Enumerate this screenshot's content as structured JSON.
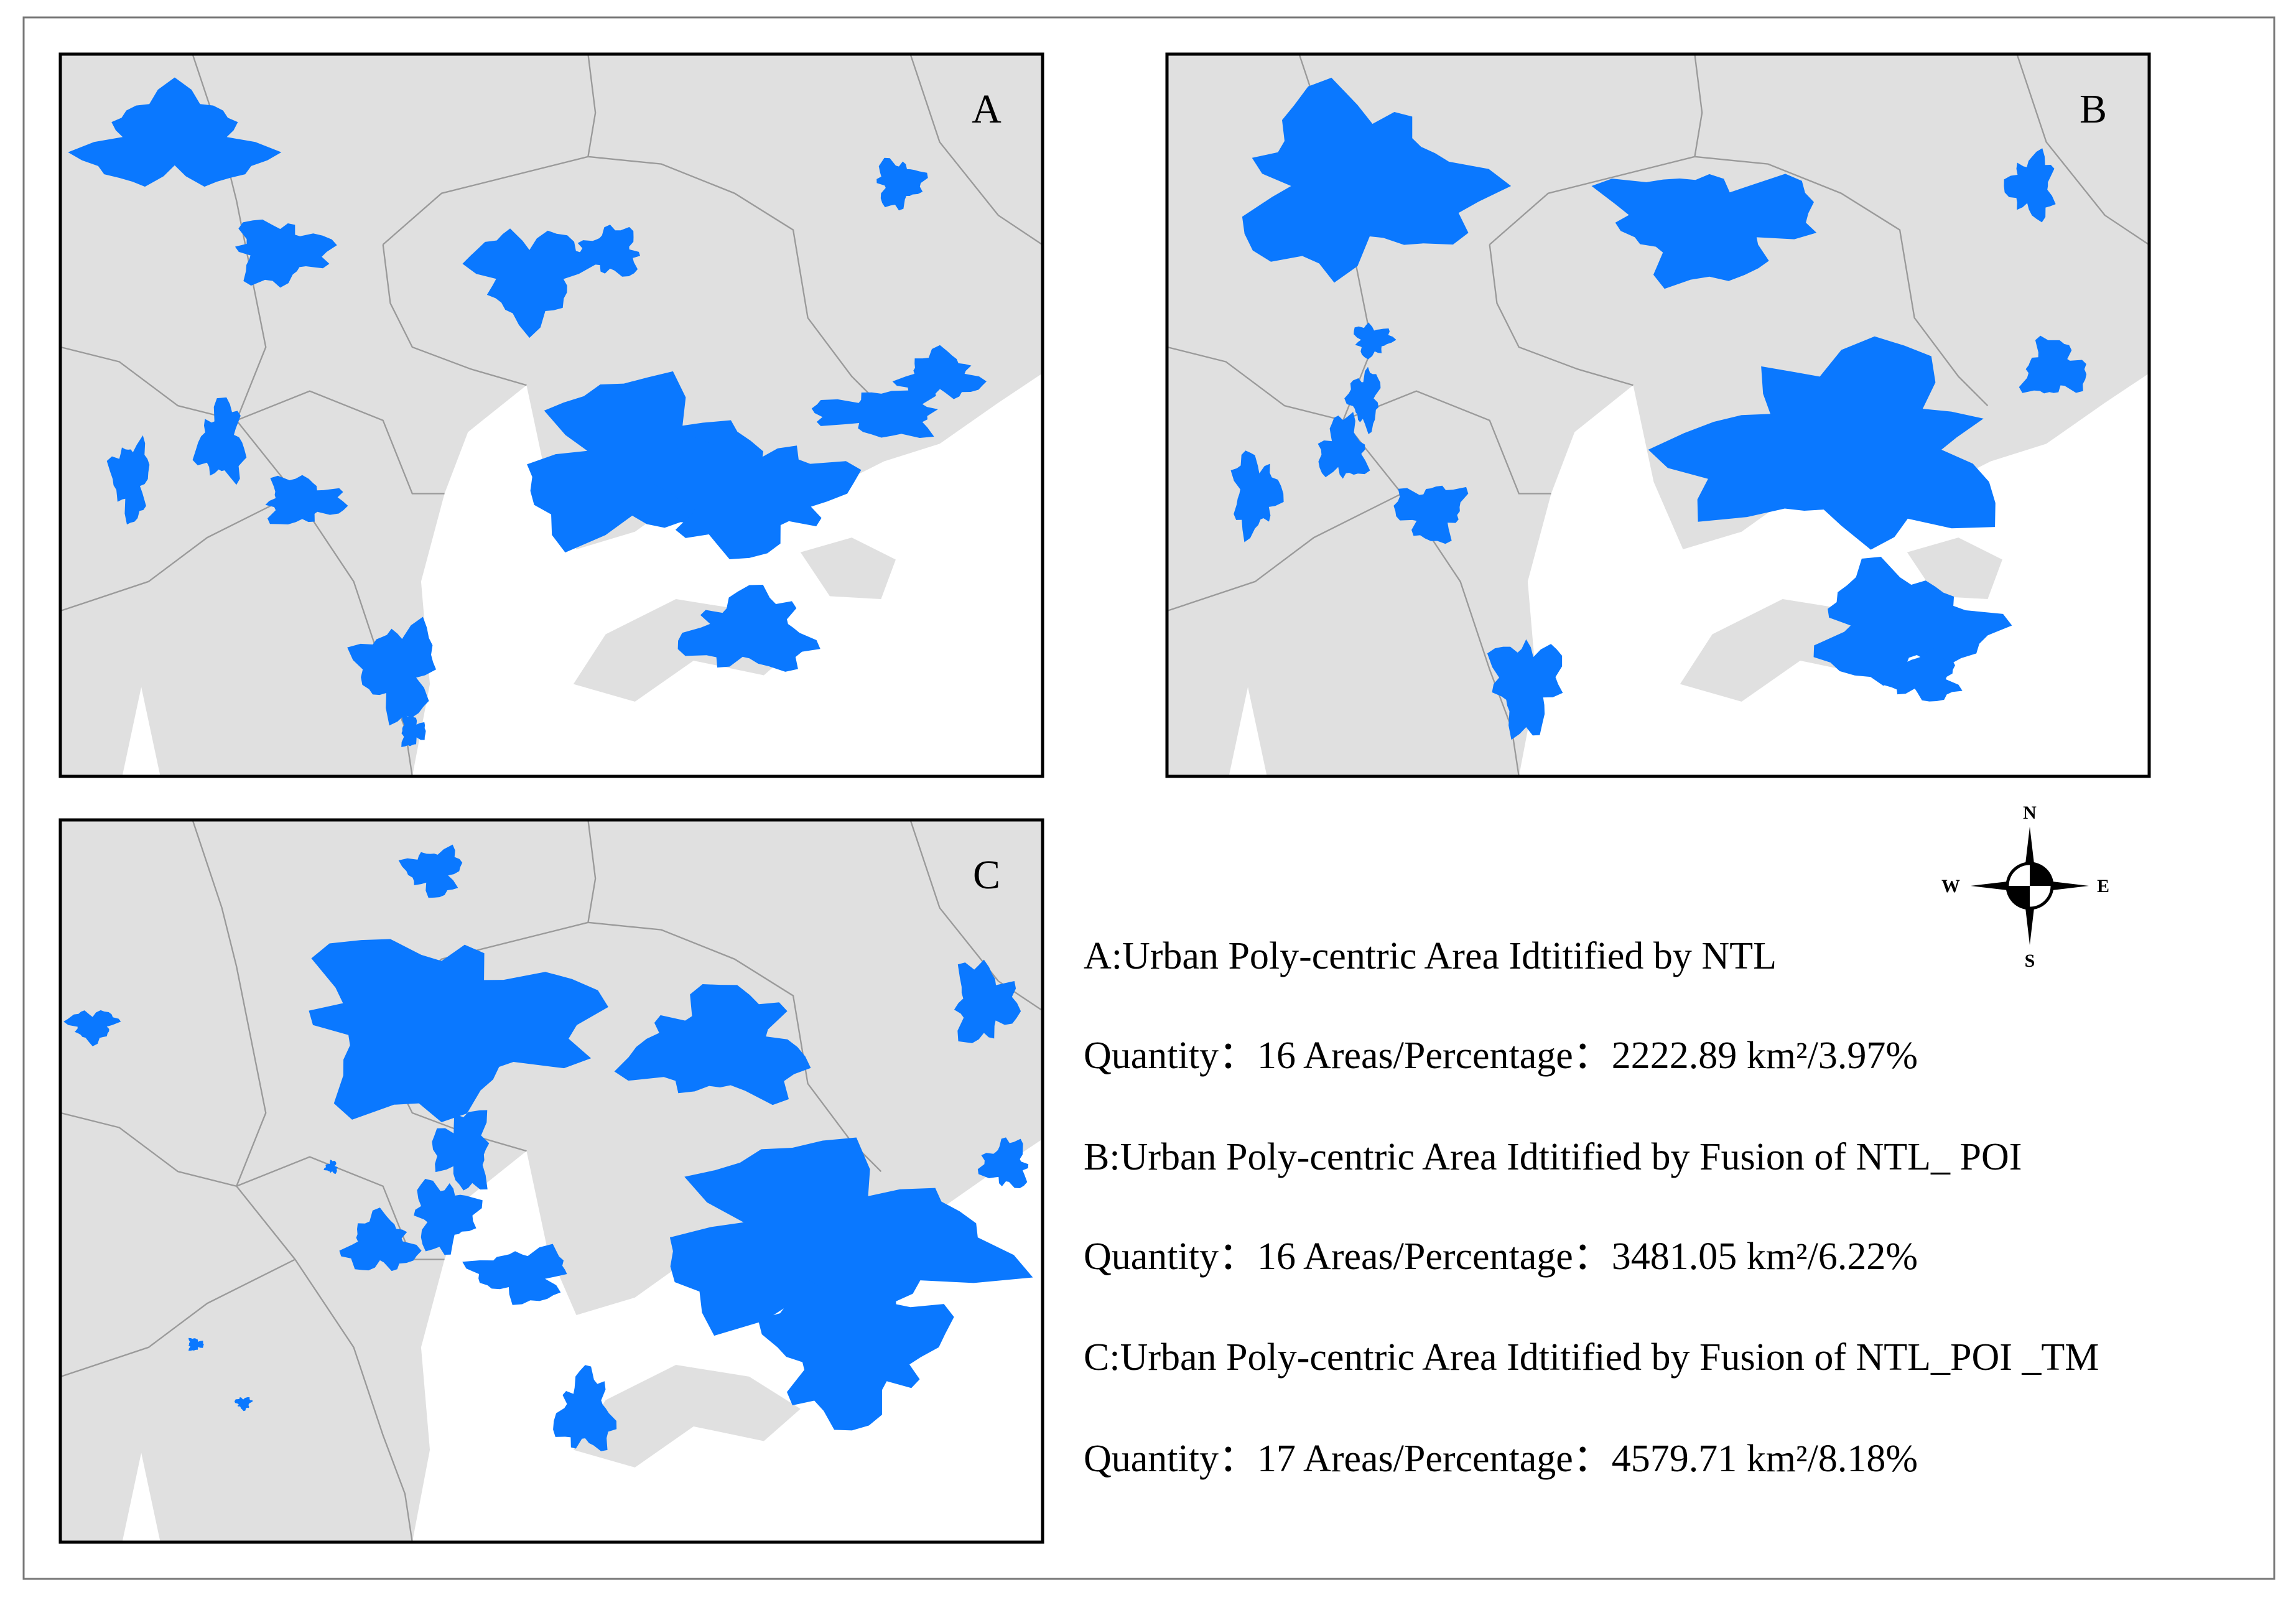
{
  "panels": [
    {
      "label": "A"
    },
    {
      "label": "B"
    },
    {
      "label": "C"
    }
  ],
  "compass": {
    "north": "N",
    "south": "S",
    "west": "W",
    "east": "E"
  },
  "legend": [
    {
      "title": "A:Urban Poly-centric Area Idtitified by NTL",
      "stats": "Quantity：16  Areas/Percentage：2222.89 km²/3.97%"
    },
    {
      "title": "B:Urban Poly-centric Area Idtitified by Fusion of NTL_ POI",
      "stats": "Quantity：16  Areas/Percentage：3481.05 km²/6.22%"
    },
    {
      "title": "C:Urban Poly-centric Area Idtitified by Fusion of NTL_POI _TM",
      "stats": "Quantity：17  Areas/Percentage：4579.71 km²/8.18%"
    }
  ]
}
